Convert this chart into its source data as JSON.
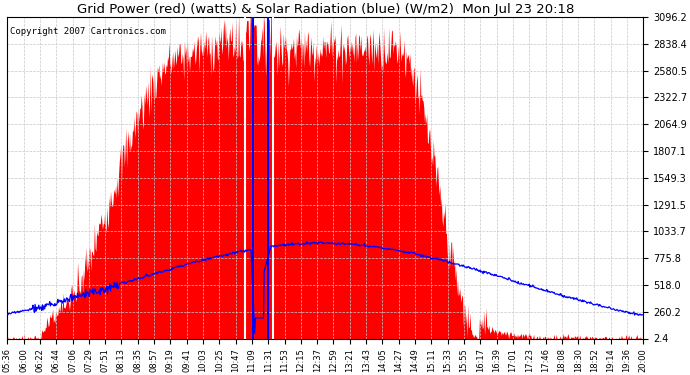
{
  "title": "Grid Power (red) (watts) & Solar Radiation (blue) (W/m2)  Mon Jul 23 20:18",
  "copyright": "Copyright 2007 Cartronics.com",
  "background_color": "#ffffff",
  "plot_bg_color": "#ffffff",
  "grid_color": "#c8c8c8",
  "red_fill_color": "#ff0000",
  "blue_line_color": "#0000ff",
  "white_spike_color": "#ffffff",
  "ylim_min": 2.4,
  "ylim_max": 3096.2,
  "ytick_labels": [
    "2.4",
    "260.2",
    "518.0",
    "775.8",
    "1033.7",
    "1291.5",
    "1549.3",
    "1807.1",
    "2064.9",
    "2322.7",
    "2580.5",
    "2838.4",
    "3096.2"
  ],
  "xtick_labels": [
    "05:36",
    "06:00",
    "06:22",
    "06:44",
    "07:06",
    "07:29",
    "07:51",
    "08:13",
    "08:35",
    "08:57",
    "09:19",
    "09:41",
    "10:03",
    "10:25",
    "10:47",
    "11:09",
    "11:31",
    "11:53",
    "12:15",
    "12:37",
    "12:59",
    "13:21",
    "13:43",
    "14:05",
    "14:27",
    "14:49",
    "15:11",
    "15:33",
    "15:55",
    "16:17",
    "16:39",
    "17:01",
    "17:23",
    "17:46",
    "18:08",
    "18:30",
    "18:52",
    "19:14",
    "19:36",
    "20:00"
  ],
  "n_points": 870
}
